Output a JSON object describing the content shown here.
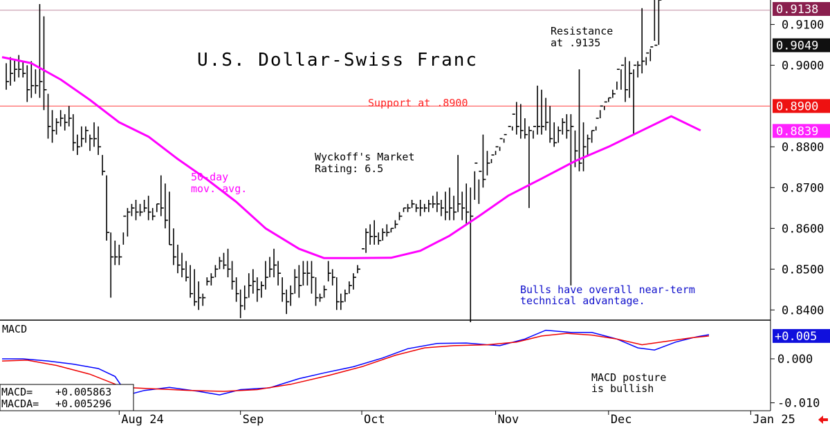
{
  "chart_data": [
    {
      "type": "ohlc",
      "title": "U.S. Dollar-Swiss Franc",
      "ylim": [
        0.8375,
        0.916
      ],
      "yticks": [
        0.84,
        0.85,
        0.86,
        0.87,
        0.88,
        0.9,
        0.91
      ],
      "ytick_labels": [
        "0.8400",
        "0.8500",
        "0.8600",
        "0.8700",
        "0.8800",
        "0.9000",
        "0.9100"
      ],
      "x_range": [
        -1,
        169
      ],
      "month_labels": [
        {
          "label": "Aug 24",
          "x": 27
        },
        {
          "label": "Sep",
          "x": 56
        },
        {
          "label": "Oct",
          "x": 85
        },
        {
          "label": "Nov",
          "x": 117
        },
        {
          "label": "Dec",
          "x": 144
        },
        {
          "label": "Jan 25",
          "x": 178
        }
      ],
      "highs": [
        0.9005,
        0.902,
        0.9015,
        0.9025,
        0.901,
        0.9,
        0.901,
        0.899,
        0.915,
        0.912,
        0.893,
        0.889,
        0.887,
        0.889,
        0.888,
        0.89,
        0.888,
        0.883,
        0.885,
        0.885,
        0.883,
        0.886,
        0.885,
        0.878,
        0.873,
        0.859,
        0.857,
        0.856,
        0.859,
        0.865,
        0.866,
        0.867,
        0.866,
        0.867,
        0.868,
        0.865,
        0.866,
        0.873,
        0.871,
        0.869,
        0.86,
        0.856,
        0.854,
        0.852,
        0.851,
        0.85,
        0.847,
        0.844,
        0.848,
        0.849,
        0.851,
        0.853,
        0.854,
        0.855,
        0.852,
        0.848,
        0.845,
        0.846,
        0.849,
        0.85,
        0.848,
        0.847,
        0.852,
        0.853,
        0.855,
        0.852,
        0.848,
        0.845,
        0.846,
        0.85,
        0.851,
        0.852,
        0.852,
        0.852,
        0.848,
        0.844,
        0.846,
        0.852,
        0.85,
        0.848,
        0.844,
        0.845,
        0.847,
        0.849,
        0.851,
        0.853,
        0.86,
        0.861,
        0.862,
        0.859,
        0.86,
        0.861,
        0.86,
        0.862,
        0.864,
        0.865,
        0.866,
        0.867,
        0.866,
        0.867,
        0.866,
        0.867,
        0.868,
        0.869,
        0.867,
        0.869,
        0.87,
        0.868,
        0.878,
        0.869,
        0.871,
        0.87,
        0.867,
        0.866,
        0.883,
        0.879,
        0.877,
        0.878,
        0.879,
        0.882,
        0.883,
        0.885,
        0.891,
        0.8905,
        0.887,
        0.885,
        0.884,
        0.895,
        0.894,
        0.892,
        0.89,
        0.886,
        0.885,
        0.887,
        0.888,
        0.888,
        0.884,
        0.899,
        0.886,
        0.883,
        0.884,
        0.885,
        0.889,
        0.89,
        0.892,
        0.894,
        0.896,
        0.899,
        0.902,
        0.901,
        0.899,
        0.901,
        0.914,
        0.902,
        0.904,
        0.906,
        0.905
      ],
      "lows": [
        0.894,
        0.895,
        0.896,
        0.897,
        0.897,
        0.891,
        0.892,
        0.893,
        0.892,
        0.889,
        0.882,
        0.881,
        0.883,
        0.885,
        0.884,
        0.885,
        0.879,
        0.878,
        0.88,
        0.881,
        0.879,
        0.88,
        0.878,
        0.873,
        0.857,
        0.843,
        0.851,
        0.851,
        0.856,
        0.858,
        0.863,
        0.862,
        0.863,
        0.864,
        0.862,
        0.862,
        0.864,
        0.863,
        0.86,
        0.856,
        0.851,
        0.849,
        0.848,
        0.847,
        0.843,
        0.841,
        0.84,
        0.841,
        0.846,
        0.846,
        0.848,
        0.85,
        0.85,
        0.848,
        0.845,
        0.842,
        0.838,
        0.84,
        0.843,
        0.844,
        0.842,
        0.843,
        0.845,
        0.848,
        0.848,
        0.846,
        0.842,
        0.839,
        0.841,
        0.844,
        0.843,
        0.846,
        0.846,
        0.844,
        0.841,
        0.842,
        0.843,
        0.847,
        0.846,
        0.84,
        0.84,
        0.842,
        0.844,
        0.845,
        0.849,
        0.853,
        0.854,
        0.856,
        0.856,
        0.856,
        0.857,
        0.858,
        0.859,
        0.86,
        0.862,
        0.864,
        0.864,
        0.865,
        0.864,
        0.863,
        0.864,
        0.864,
        0.865,
        0.864,
        0.863,
        0.862,
        0.862,
        0.862,
        0.864,
        0.862,
        0.861,
        0.837,
        0.874,
        0.872,
        0.87,
        0.873,
        0.876,
        0.879,
        0.88,
        0.881,
        0.883,
        0.884,
        0.883,
        0.882,
        0.882,
        0.865,
        0.882,
        0.883,
        0.883,
        0.884,
        0.881,
        0.88,
        0.881,
        0.883,
        0.882,
        0.846,
        0.875,
        0.874,
        0.874,
        0.878,
        0.881,
        0.884,
        0.887,
        0.889,
        0.891,
        0.892,
        0.894,
        0.894,
        0.891,
        0.892,
        0.883,
        0.897,
        0.898,
        0.9,
        0.901
      ],
      "closes": [
        0.896,
        0.898,
        0.899,
        0.899,
        0.898,
        0.894,
        0.895,
        0.895,
        0.896,
        0.894,
        0.885,
        0.884,
        0.886,
        0.887,
        0.886,
        0.887,
        0.881,
        0.88,
        0.882,
        0.884,
        0.882,
        0.882,
        0.88,
        0.874,
        0.859,
        0.853,
        0.853,
        0.853,
        0.863,
        0.864,
        0.865,
        0.864,
        0.864,
        0.865,
        0.864,
        0.863,
        0.866,
        0.865,
        0.862,
        0.856,
        0.853,
        0.851,
        0.85,
        0.848,
        0.844,
        0.842,
        0.843,
        0.843,
        0.847,
        0.848,
        0.85,
        0.852,
        0.851,
        0.85,
        0.847,
        0.844,
        0.841,
        0.843,
        0.846,
        0.847,
        0.845,
        0.846,
        0.848,
        0.85,
        0.851,
        0.849,
        0.844,
        0.842,
        0.844,
        0.848,
        0.846,
        0.849,
        0.849,
        0.848,
        0.843,
        0.843,
        0.845,
        0.849,
        0.848,
        0.842,
        0.842,
        0.844,
        0.846,
        0.848,
        0.85,
        0.855,
        0.859,
        0.858,
        0.858,
        0.857,
        0.859,
        0.859,
        0.86,
        0.861,
        0.863,
        0.865,
        0.865,
        0.866,
        0.865,
        0.865,
        0.865,
        0.866,
        0.866,
        0.866,
        0.865,
        0.864,
        0.865,
        0.864,
        0.866,
        0.865,
        0.864,
        0.863,
        0.876,
        0.874,
        0.872,
        0.876,
        0.878,
        0.88,
        0.882,
        0.883,
        0.885,
        0.888,
        0.885,
        0.884,
        0.883,
        0.884,
        0.885,
        0.885,
        0.885,
        0.886,
        0.882,
        0.881,
        0.884,
        0.886,
        0.884,
        0.885,
        0.879,
        0.876,
        0.88,
        0.882,
        0.884,
        0.887,
        0.89,
        0.891,
        0.892,
        0.893,
        0.899,
        0.9,
        0.894,
        0.898,
        0.9,
        0.9,
        0.901,
        0.903,
        0.9045,
        0.9049
      ],
      "ma50": [
        [
          -1,
          0.902
        ],
        [
          6,
          0.9005
        ],
        [
          13,
          0.8965
        ],
        [
          20,
          0.8915
        ],
        [
          27,
          0.886
        ],
        [
          34,
          0.8825
        ],
        [
          41,
          0.877
        ],
        [
          48,
          0.872
        ],
        [
          55,
          0.8665
        ],
        [
          62,
          0.86
        ],
        [
          70,
          0.855
        ],
        [
          76,
          0.8527
        ],
        [
          83,
          0.8527
        ],
        [
          92,
          0.8528
        ],
        [
          99,
          0.8545
        ],
        [
          106,
          0.8582
        ],
        [
          113,
          0.863
        ],
        [
          120,
          0.868
        ],
        [
          128,
          0.8722
        ],
        [
          136,
          0.8765
        ],
        [
          144,
          0.88
        ],
        [
          152,
          0.884
        ],
        [
          159,
          0.8875
        ],
        [
          166,
          0.884
        ]
      ],
      "hlines": [
        {
          "name": "resistance",
          "value": 0.9135,
          "color": "#c08aa0"
        },
        {
          "name": "support",
          "value": 0.89,
          "color": "#ff4040"
        }
      ],
      "badges": [
        {
          "label": "0.9138",
          "value": 0.9138,
          "bg": "#8a1f4e",
          "fg": "#ffffff"
        },
        {
          "label": "0.9049",
          "value": 0.9049,
          "bg": "#101010",
          "fg": "#ffffff"
        },
        {
          "label": "0.8900",
          "value": 0.89,
          "bg": "#ee1111",
          "fg": "#ffffff"
        },
        {
          "label": "0.8839",
          "value": 0.8839,
          "bg": "#ff22ff",
          "fg": "#ffffff"
        }
      ],
      "annotations": {
        "resistance_1": "Resistance",
        "resistance_2": "at .9135",
        "support": "Support at .8900",
        "wyckoff_1": "Wyckoff's Market",
        "wyckoff_2": "Rating: 6.5",
        "ma_1": "50-day",
        "ma_2": "mov. avg.",
        "bulls_1": "Bulls have overall near-term",
        "bulls_2": "technical advantage."
      },
      "colors": {
        "price": "#000000",
        "ma": "#ff00ff",
        "support": "#ff4040",
        "resistance": "#c08aa0",
        "bulls_text": "#1010cc"
      }
    },
    {
      "type": "line",
      "title": "MACD",
      "ylim": [
        -0.0118,
        0.0088
      ],
      "yticks": [
        0.0,
        -0.01
      ],
      "ytick_labels": [
        "0.000",
        "-0.010"
      ],
      "series": [
        {
          "name": "MACD",
          "color": "#0000ff",
          "values": [
            [
              -1,
              0.0
            ],
            [
              4,
              0.0
            ],
            [
              10,
              -0.0005
            ],
            [
              16,
              -0.0012
            ],
            [
              22,
              -0.0022
            ],
            [
              26,
              -0.004
            ],
            [
              29,
              -0.0082
            ],
            [
              33,
              -0.0072
            ],
            [
              39,
              -0.0065
            ],
            [
              46,
              -0.0074
            ],
            [
              51,
              -0.0082
            ],
            [
              56,
              -0.007
            ],
            [
              63,
              -0.0066
            ],
            [
              70,
              -0.0045
            ],
            [
              76,
              -0.0032
            ],
            [
              83,
              -0.0018
            ],
            [
              90,
              0.0002
            ],
            [
              96,
              0.0023
            ],
            [
              103,
              0.0035
            ],
            [
              110,
              0.0036
            ],
            [
              115,
              0.0032
            ],
            [
              118,
              0.003
            ],
            [
              124,
              0.0045
            ],
            [
              129,
              0.0065
            ],
            [
              135,
              0.006
            ],
            [
              140,
              0.006
            ],
            [
              146,
              0.0045
            ],
            [
              151,
              0.0025
            ],
            [
              155,
              0.002
            ],
            [
              160,
              0.0038
            ],
            [
              165,
              0.005
            ],
            [
              168,
              0.0055
            ]
          ]
        },
        {
          "name": "MACDA",
          "color": "#ee0000",
          "values": [
            [
              -1,
              -0.0005
            ],
            [
              5,
              -0.0003
            ],
            [
              12,
              -0.0015
            ],
            [
              20,
              -0.0035
            ],
            [
              28,
              -0.0065
            ],
            [
              35,
              -0.0068
            ],
            [
              44,
              -0.0072
            ],
            [
              52,
              -0.0074
            ],
            [
              60,
              -0.007
            ],
            [
              68,
              -0.0058
            ],
            [
              77,
              -0.0038
            ],
            [
              85,
              -0.0018
            ],
            [
              93,
              0.0008
            ],
            [
              100,
              0.0025
            ],
            [
              107,
              0.003
            ],
            [
              115,
              0.0032
            ],
            [
              122,
              0.0038
            ],
            [
              128,
              0.0052
            ],
            [
              134,
              0.0058
            ],
            [
              140,
              0.0054
            ],
            [
              146,
              0.0045
            ],
            [
              152,
              0.0032
            ],
            [
              158,
              0.004
            ],
            [
              164,
              0.0048
            ],
            [
              168,
              0.0052
            ]
          ]
        }
      ],
      "badge": {
        "label": "+0.005",
        "value": 0.0052,
        "bg": "#1010dd",
        "fg": "#ffffff"
      },
      "readout": {
        "macd_label": "MACD=",
        "macd_value": "+0.005863",
        "macda_label": "MACDA=",
        "macda_value": "+0.005296"
      },
      "annotation_1": "MACD posture",
      "annotation_2": "is bullish"
    }
  ]
}
